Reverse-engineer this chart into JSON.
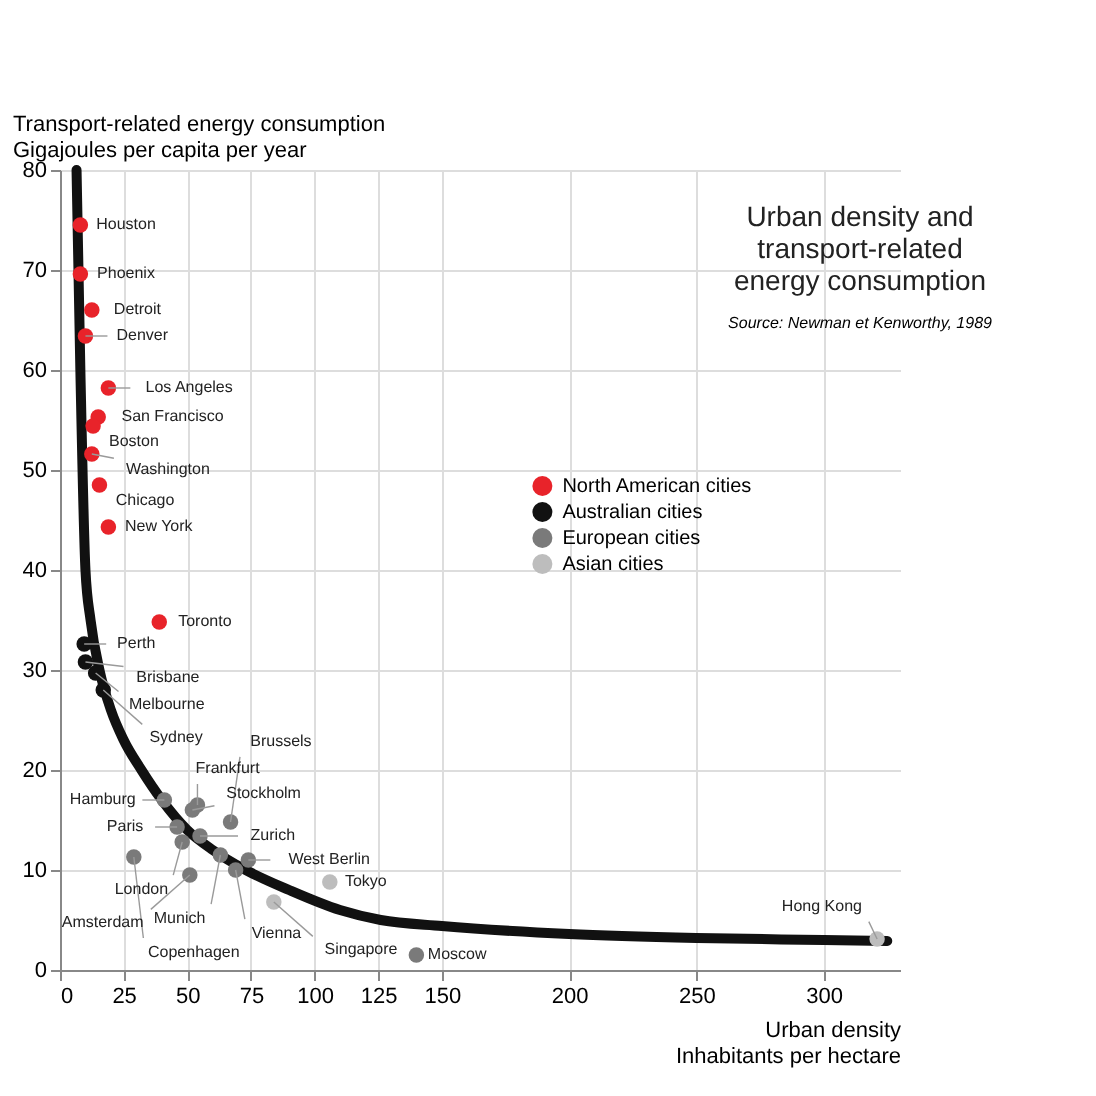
{
  "chart_data": {
    "type": "scatter",
    "title": "Urban density and\ntransport-related\nenergy consumption",
    "xlabel": "Urban density\nInhabitants per hectare",
    "ylabel": "Transport-related energy consumption\nGigajoules per capita per year",
    "xlim": [
      0,
      330
    ],
    "xticks": [
      0,
      25,
      50,
      75,
      100,
      125,
      150,
      200,
      250,
      300
    ],
    "ylim": [
      0,
      80
    ],
    "yticks": [
      0,
      10,
      20,
      30,
      40,
      50,
      60,
      70,
      80
    ],
    "grid": true,
    "legend": "right",
    "marker": "circle",
    "series": [
      {
        "type": "line",
        "marker": "none",
        "color": "#111111",
        "x": [
          6.5,
          8,
          10,
          12,
          15.5,
          20,
          25,
          32,
          40,
          50,
          60,
          73,
          90,
          110,
          126,
          150,
          200,
          250,
          300,
          325
        ],
        "values": [
          80,
          60,
          40,
          35,
          30,
          26,
          23,
          20,
          17,
          14,
          12,
          10,
          8,
          6,
          5,
          4.4,
          3.6,
          3.2,
          3,
          2.9
        ]
      },
      {
        "name": "North American cities",
        "color": "#e8232a",
        "x": [
          8,
          8,
          12.5,
          10,
          19,
          15,
          13,
          12.5,
          15.5,
          19,
          39
        ],
        "values": [
          74.5,
          69.6,
          66,
          63.4,
          58.2,
          55.3,
          54.4,
          51.6,
          48.5,
          44.3,
          34.8
        ]
      },
      {
        "name": "Australian cities",
        "color": "#111111",
        "x": [
          9.5,
          10,
          14,
          17
        ],
        "values": [
          32.6,
          30.8,
          29.7,
          28
        ]
      },
      {
        "name": "European cities",
        "color": "#7a7a7a",
        "x": [
          41,
          52,
          54,
          55,
          46,
          48,
          67,
          63,
          74,
          69,
          29,
          51,
          140
        ],
        "values": [
          17,
          16,
          16.5,
          13.4,
          14.3,
          12.8,
          14.8,
          11.5,
          11,
          10,
          11.3,
          9.5,
          1.5
        ]
      },
      {
        "name": "Asian cities",
        "color": "#bdbdbd",
        "x": [
          106,
          84,
          321
        ],
        "values": [
          8.8,
          6.8,
          3.1
        ]
      }
    ],
    "annotations": [
      "Source: Newman et Kenworthy, 1989",
      {
        "text": "Houston",
        "x": 8,
        "y": 74.5
      },
      {
        "text": "Phoenix",
        "x": 8,
        "y": 69.6
      },
      {
        "text": "Detroit",
        "x": 12.5,
        "y": 66
      },
      {
        "text": "Denver",
        "x": 10,
        "y": 63.4
      },
      {
        "text": "Los Angeles",
        "x": 19,
        "y": 58.2
      },
      {
        "text": "San Francisco",
        "x": 15,
        "y": 55.3
      },
      {
        "text": "Boston",
        "x": 13,
        "y": 54.4
      },
      {
        "text": "Washington",
        "x": 12.5,
        "y": 51.6
      },
      {
        "text": "Chicago",
        "x": 15.5,
        "y": 48.5
      },
      {
        "text": "New York",
        "x": 19,
        "y": 44.3
      },
      {
        "text": "Toronto",
        "x": 39,
        "y": 34.8
      },
      {
        "text": "Perth",
        "x": 9.5,
        "y": 32.6
      },
      {
        "text": "Brisbane",
        "x": 10,
        "y": 30.8
      },
      {
        "text": "Melbourne",
        "x": 14,
        "y": 29.7
      },
      {
        "text": "Sydney",
        "x": 17,
        "y": 28
      },
      {
        "text": "Hamburg",
        "x": 41,
        "y": 17
      },
      {
        "text": "Stockholm",
        "x": 52,
        "y": 16
      },
      {
        "text": "Frankfurt",
        "x": 54,
        "y": 16.5
      },
      {
        "text": "Zurich",
        "x": 55,
        "y": 13.4
      },
      {
        "text": "Paris",
        "x": 46,
        "y": 14.3
      },
      {
        "text": "London",
        "x": 48,
        "y": 12.8
      },
      {
        "text": "Brussels",
        "x": 67,
        "y": 14.8
      },
      {
        "text": "Munich",
        "x": 63,
        "y": 11.5
      },
      {
        "text": "West Berlin",
        "x": 74,
        "y": 11
      },
      {
        "text": "Vienna",
        "x": 69,
        "y": 10
      },
      {
        "text": "Copenhagen",
        "x": 29,
        "y": 11.3
      },
      {
        "text": "Amsterdam",
        "x": 51,
        "y": 9.5
      },
      {
        "text": "Moscow",
        "x": 140,
        "y": 1.5
      },
      {
        "text": "Tokyo",
        "x": 106,
        "y": 8.8
      },
      {
        "text": "Singapore",
        "x": 84,
        "y": 6.8
      },
      {
        "text": "Hong Kong",
        "x": 321,
        "y": 3.1
      }
    ]
  }
}
